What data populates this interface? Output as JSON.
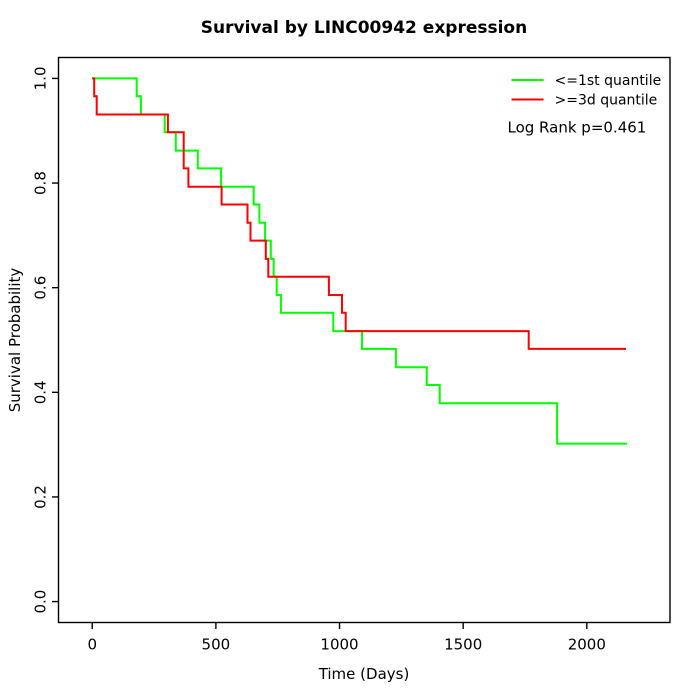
{
  "title": "Survival by LINC00942 expression",
  "axes": {
    "x": {
      "label": "Time (Days)",
      "tick_labels": [
        "0",
        "500",
        "1000",
        "1500",
        "2000"
      ],
      "tick_values": [
        0,
        500,
        1000,
        1500,
        2000
      ]
    },
    "y": {
      "label": "Survival Probability",
      "tick_labels": [
        "0.0",
        "0.2",
        "0.4",
        "0.6",
        "0.8",
        "1.0"
      ],
      "tick_values": [
        0,
        0.2,
        0.4,
        0.6,
        0.8,
        1.0
      ]
    }
  },
  "legend": {
    "items": [
      {
        "label": "<=1st quantile",
        "color": "#00FF00"
      },
      {
        "label": ">=3d quantile",
        "color": "#FF0000"
      }
    ],
    "note": "Log Rank p=0.461"
  },
  "chart_data": {
    "type": "line",
    "subtype": "kaplan-meier-step",
    "title": "Survival by LINC00942 expression",
    "xlabel": "Time (Days)",
    "ylabel": "Survival Probability",
    "xlim": [
      0,
      2200
    ],
    "ylim": [
      0.0,
      1.0
    ],
    "grid": false,
    "legend_position": "topright",
    "annotation": "Log Rank p=0.461",
    "series": [
      {
        "name": "<=1st quantile",
        "color": "#00FF00",
        "step": "after",
        "points": [
          [
            0,
            1.0
          ],
          [
            180,
            0.966
          ],
          [
            197,
            0.931
          ],
          [
            293,
            0.897
          ],
          [
            338,
            0.862
          ],
          [
            427,
            0.828
          ],
          [
            521,
            0.793
          ],
          [
            653,
            0.759
          ],
          [
            676,
            0.724
          ],
          [
            699,
            0.69
          ],
          [
            722,
            0.655
          ],
          [
            734,
            0.621
          ],
          [
            746,
            0.586
          ],
          [
            763,
            0.552
          ],
          [
            975,
            0.517
          ],
          [
            1091,
            0.483
          ],
          [
            1228,
            0.448
          ],
          [
            1353,
            0.414
          ],
          [
            1405,
            0.379
          ],
          [
            1880,
            0.302
          ],
          [
            2163,
            0.302
          ]
        ]
      },
      {
        "name": ">=3d quantile",
        "color": "#FF0000",
        "step": "after",
        "points": [
          [
            0,
            1.0
          ],
          [
            8,
            0.966
          ],
          [
            18,
            0.931
          ],
          [
            306,
            0.897
          ],
          [
            370,
            0.828
          ],
          [
            389,
            0.793
          ],
          [
            523,
            0.759
          ],
          [
            628,
            0.724
          ],
          [
            640,
            0.69
          ],
          [
            702,
            0.655
          ],
          [
            712,
            0.621
          ],
          [
            957,
            0.586
          ],
          [
            1010,
            0.552
          ],
          [
            1025,
            0.517
          ],
          [
            1765,
            0.483
          ],
          [
            2159,
            0.483
          ]
        ]
      }
    ]
  }
}
